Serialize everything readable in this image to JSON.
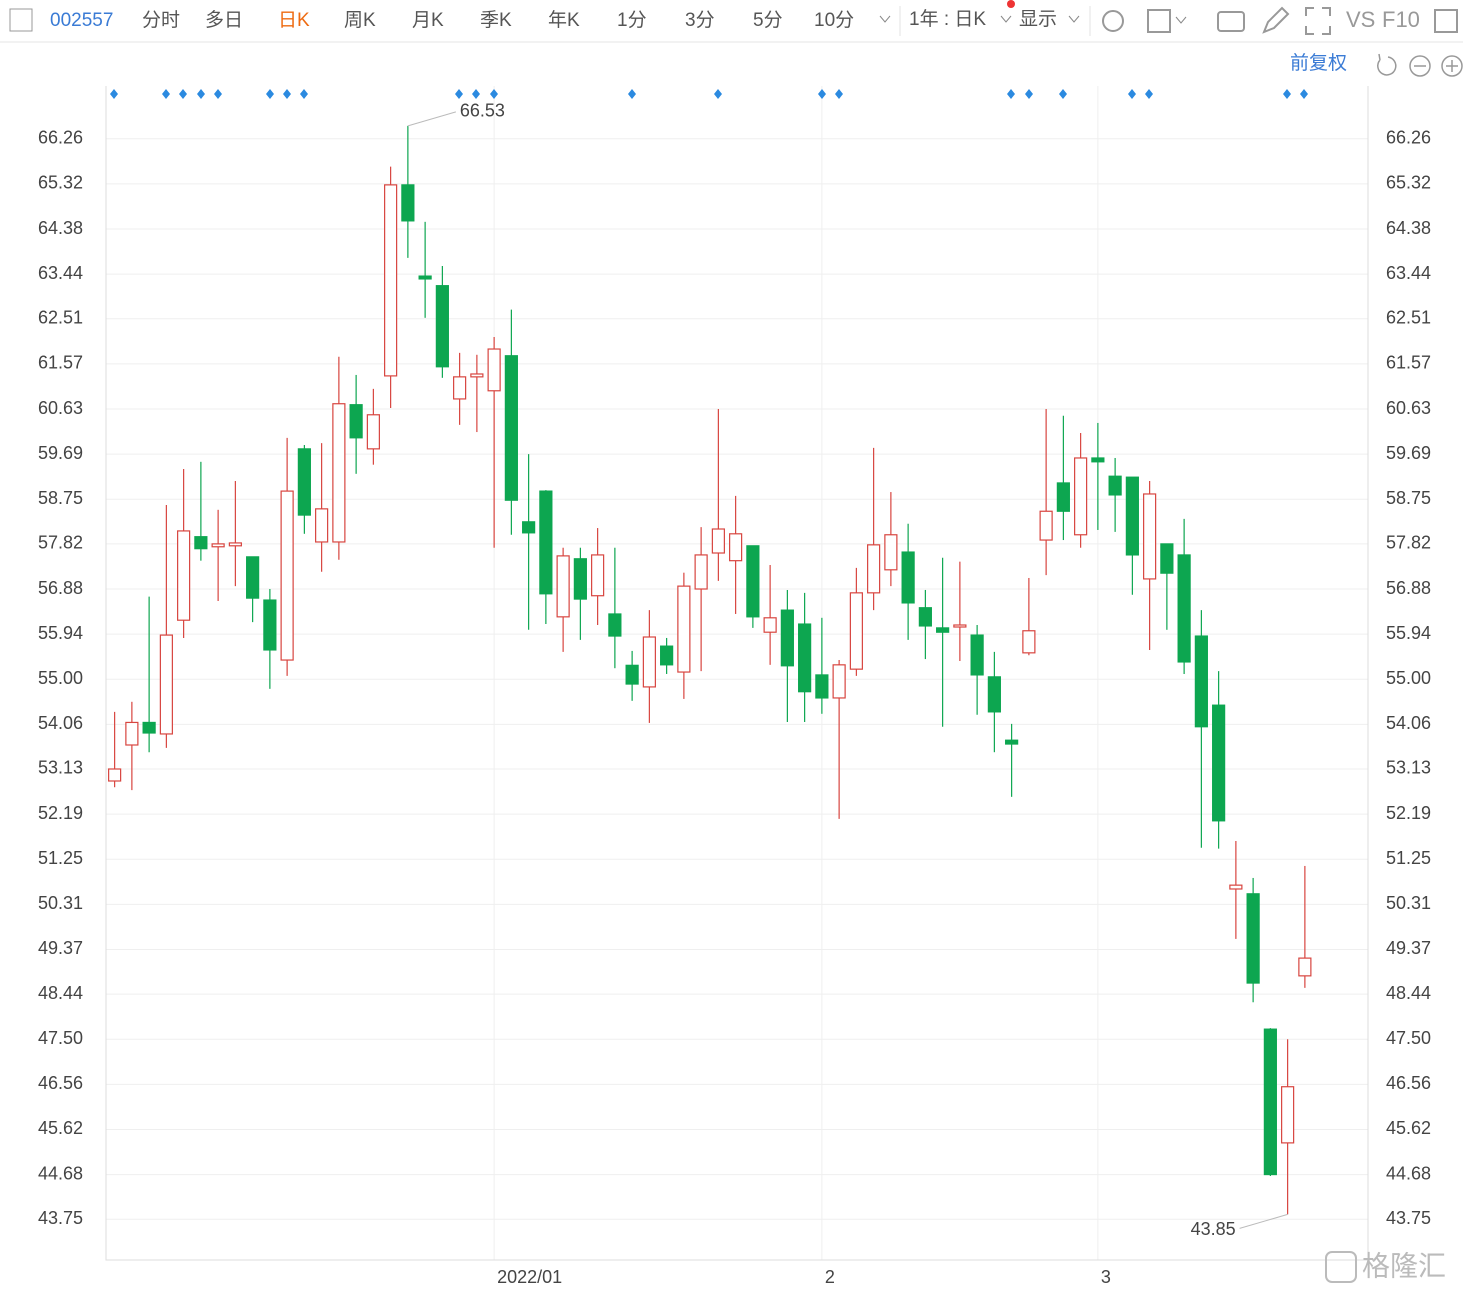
{
  "toolbar": {
    "code": "002557",
    "tabs": [
      "分时",
      "多日",
      "日K",
      "周K",
      "月K",
      "季K",
      "年K",
      "1分",
      "3分",
      "5分",
      "10分"
    ],
    "period": "1年 : 日K",
    "display": "显示",
    "vs": "VS",
    "f10": "F10",
    "adjust": "前复权",
    "watermark": "格隆汇"
  },
  "chart_data": {
    "type": "candlestick",
    "categories": [
      null,
      null,
      null,
      null,
      null,
      null,
      null,
      null,
      null,
      null,
      null,
      null,
      null,
      null,
      null,
      null,
      null,
      null,
      null,
      null,
      null,
      null,
      "2022/01",
      null,
      null,
      null,
      null,
      null,
      null,
      null,
      null,
      null,
      null,
      null,
      null,
      null,
      null,
      null,
      null,
      null,
      null,
      "2",
      null,
      null,
      null,
      null,
      null,
      null,
      null,
      null,
      null,
      null,
      null,
      null,
      null,
      null,
      null,
      "3",
      null,
      null,
      null,
      null,
      null,
      null,
      null,
      null,
      null,
      null,
      null,
      null
    ],
    "open": [
      52.88,
      53.63,
      54.1,
      53.86,
      56.23,
      57.97,
      57.76,
      57.78,
      57.55,
      56.65,
      55.4,
      59.8,
      57.86,
      57.86,
      60.72,
      59.8,
      61.32,
      65.3,
      63.4,
      63.2,
      60.84,
      61.3,
      61.01,
      61.74,
      58.28,
      58.92,
      56.3,
      57.51,
      56.74,
      56.36,
      55.29,
      54.84,
      55.69,
      55.15,
      56.88,
      57.63,
      57.47,
      57.78,
      55.98,
      56.44,
      56.15,
      55.09,
      54.61,
      55.21,
      56.8,
      57.28,
      57.65,
      56.49,
      56.07,
      56.09,
      55.92,
      55.05,
      53.73,
      55.55,
      57.9,
      59.09,
      58.01,
      59.61,
      59.23,
      59.21,
      57.09,
      57.82,
      57.59,
      55.9,
      54.46,
      50.63,
      50.53,
      47.71,
      45.34,
      48.82
    ],
    "high": [
      54.32,
      54.53,
      56.72,
      58.63,
      59.38,
      59.53,
      58.53,
      59.13,
      57.55,
      56.88,
      60.03,
      59.88,
      59.92,
      61.72,
      61.34,
      61.05,
      65.68,
      66.53,
      64.53,
      63.61,
      61.8,
      61.76,
      62.13,
      62.7,
      59.69,
      58.94,
      57.74,
      57.74,
      58.15,
      57.74,
      55.59,
      56.44,
      55.86,
      57.22,
      58.17,
      60.63,
      58.82,
      57.78,
      57.38,
      56.86,
      56.8,
      56.28,
      55.4,
      57.32,
      59.82,
      58.9,
      58.24,
      56.86,
      57.53,
      57.45,
      56.13,
      55.57,
      54.07,
      57.11,
      60.63,
      60.49,
      60.13,
      60.34,
      59.61,
      59.21,
      59.13,
      57.82,
      58.34,
      56.44,
      55.17,
      51.63,
      50.86,
      47.73,
      47.5,
      51.11
    ],
    "low": [
      52.75,
      52.69,
      53.48,
      53.57,
      55.86,
      57.47,
      56.63,
      56.94,
      56.19,
      54.8,
      55.07,
      58.03,
      57.24,
      57.49,
      59.28,
      59.47,
      60.65,
      63.78,
      62.53,
      61.28,
      60.3,
      60.15,
      57.74,
      58.01,
      56.03,
      56.15,
      55.57,
      55.82,
      56.13,
      55.23,
      54.55,
      54.09,
      55.11,
      54.59,
      55.17,
      57.05,
      56.36,
      56.07,
      55.3,
      54.11,
      54.11,
      54.28,
      52.09,
      55.07,
      56.44,
      56.94,
      55.82,
      55.42,
      54.01,
      55.38,
      54.26,
      53.48,
      52.55,
      55.5,
      57.17,
      57.9,
      57.74,
      58.11,
      58.07,
      56.76,
      55.61,
      56.03,
      55.11,
      51.49,
      51.47,
      49.59,
      48.27,
      44.65,
      43.85,
      48.57
    ],
    "close": [
      53.13,
      54.1,
      53.88,
      55.92,
      58.09,
      57.72,
      57.82,
      57.84,
      56.69,
      55.61,
      58.92,
      58.42,
      58.55,
      60.74,
      60.03,
      60.51,
      65.3,
      64.55,
      63.34,
      61.51,
      61.3,
      61.36,
      61.88,
      58.73,
      58.05,
      56.78,
      57.57,
      56.67,
      57.59,
      55.9,
      54.9,
      55.88,
      55.3,
      56.94,
      57.59,
      58.13,
      58.03,
      56.3,
      56.28,
      55.28,
      54.74,
      54.61,
      55.3,
      56.8,
      57.8,
      58.01,
      56.59,
      56.11,
      55.98,
      56.13,
      55.09,
      54.32,
      53.65,
      56.01,
      58.5,
      58.5,
      59.61,
      59.53,
      58.84,
      57.59,
      58.86,
      57.21,
      55.36,
      54.01,
      52.05,
      50.71,
      48.67,
      44.68,
      46.51,
      49.19
    ],
    "up_color": "#d8453f",
    "down_color": "#0da650",
    "annotations": [
      66.53,
      43.85
    ],
    "ylim": [
      42.9,
      67.36
    ],
    "yticks": [
      66.26,
      65.32,
      64.38,
      63.44,
      62.51,
      61.57,
      60.63,
      59.69,
      58.75,
      57.82,
      56.88,
      55.94,
      {
        "value": 55,
        "label": "55.00"
      },
      54.06,
      53.13,
      52.19,
      51.25,
      50.31,
      49.37,
      48.44,
      {
        "value": 47.5,
        "label": "47.50"
      },
      46.56,
      45.62,
      44.68,
      43.75
    ],
    "grid": true
  }
}
